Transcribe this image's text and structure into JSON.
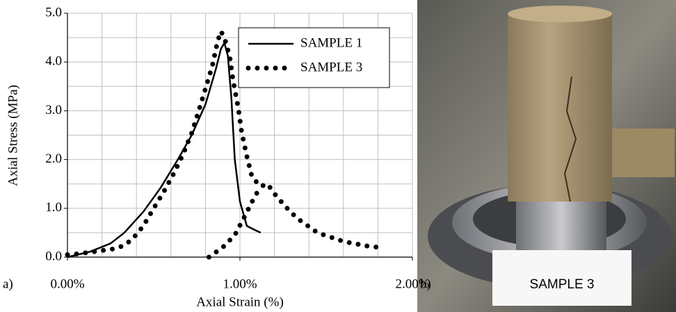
{
  "chart_data": {
    "type": "line",
    "xlabel": "Axial Strain (%)",
    "ylabel": "Axial Stress (MPa)",
    "xlim": [
      0,
      2
    ],
    "ylim": [
      0,
      5
    ],
    "xticks": [
      {
        "value": 0,
        "label": "0.00%"
      },
      {
        "value": 1,
        "label": "1.00%"
      },
      {
        "value": 2,
        "label": "2.00%"
      }
    ],
    "yticks": [
      {
        "value": 0,
        "label": "0.0"
      },
      {
        "value": 1,
        "label": "1.0"
      },
      {
        "value": 2,
        "label": "2.0"
      },
      {
        "value": 3,
        "label": "3.0"
      },
      {
        "value": 4,
        "label": "4.0"
      },
      {
        "value": 5,
        "label": "5.0"
      }
    ],
    "xgrid": [
      0,
      0.2,
      0.4,
      0.6,
      0.8,
      1,
      1.2,
      1.4,
      1.6,
      1.8,
      2
    ],
    "ygrid": [
      0,
      0.5,
      1,
      1.5,
      2,
      2.5,
      3,
      3.5,
      4,
      4.5,
      5
    ],
    "grid": true,
    "legend": "upper right",
    "series": [
      {
        "name": "SAMPLE 1",
        "color": "#000000",
        "style": "solid",
        "x": [
          0,
          0.13,
          0.25,
          0.33,
          0.44,
          0.54,
          0.64,
          0.72,
          0.8,
          0.86,
          0.89,
          0.91,
          0.93,
          0.95,
          0.97,
          1.0,
          1.04,
          1.09,
          1.12
        ],
        "values": [
          0,
          0.11,
          0.28,
          0.5,
          0.93,
          1.42,
          2.0,
          2.5,
          3.13,
          3.85,
          4.27,
          4.39,
          4.13,
          3.28,
          2.0,
          1.14,
          0.64,
          0.55,
          0.5
        ]
      },
      {
        "name": "SAMPLE 3",
        "color": "#000000",
        "style": "dotted",
        "x": [
          0,
          0.07,
          0.27,
          0.33,
          0.38,
          0.44,
          0.5,
          0.56,
          0.62,
          0.67,
          0.72,
          0.76,
          0.8,
          0.84,
          0.87,
          0.89,
          0.91,
          0.94,
          0.96,
          0.99,
          1.01,
          1.04,
          1.07,
          1.12,
          1.16,
          1.2,
          1.26,
          1.33,
          1.45,
          1.6,
          1.75,
          1.84,
          1.84,
          0.82,
          0.9,
          0.97,
          1.03,
          1.08,
          1.12
        ],
        "values": [
          0.05,
          0.07,
          0.17,
          0.24,
          0.38,
          0.64,
          1.0,
          1.35,
          1.74,
          2.11,
          2.54,
          2.99,
          3.45,
          3.92,
          4.42,
          4.63,
          4.49,
          4.13,
          3.63,
          3.06,
          2.56,
          2.07,
          1.64,
          1.45,
          1.5,
          1.3,
          1.05,
          0.8,
          0.5,
          0.32,
          0.22,
          0.19,
          null,
          0,
          0.2,
          0.45,
          0.85,
          1.2,
          1.45
        ]
      }
    ]
  },
  "panel_labels": [
    "a)",
    "b)"
  ],
  "photo_caption": "SAMPLE 3"
}
